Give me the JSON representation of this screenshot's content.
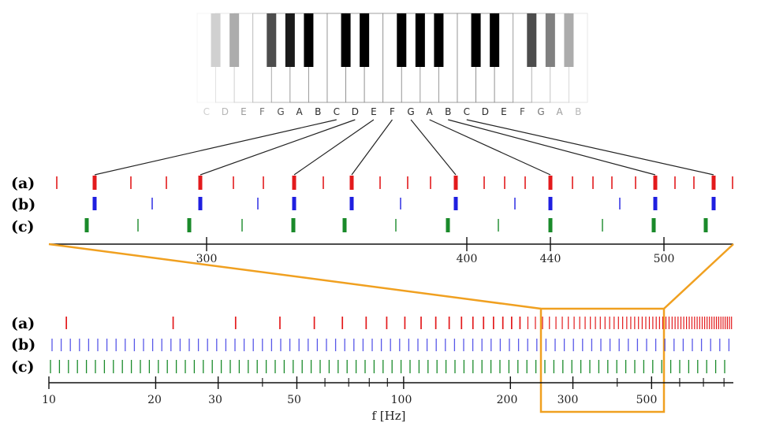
{
  "keyboard": {
    "note_labels": [
      "C",
      "D",
      "E",
      "F",
      "G",
      "A",
      "B",
      "C",
      "D",
      "E",
      "F",
      "G",
      "A",
      "B",
      "C",
      "D",
      "E",
      "F",
      "G",
      "A",
      "B"
    ]
  },
  "rows": [
    {
      "label": "(a)",
      "color": "#e31a1c"
    },
    {
      "label": "(b)",
      "color": "#1f1fe0"
    },
    {
      "label": "(c)",
      "color": "#1a8a2a"
    }
  ],
  "colors": {
    "zoom_box": "#f0a020",
    "axis": "#111111",
    "lines": "#222222"
  },
  "zoom_axis": {
    "ticks": [
      "300",
      "400",
      "440",
      "500"
    ]
  },
  "full_axis": {
    "ticks": [
      "10",
      "20",
      "30",
      "50",
      "100",
      "200",
      "300",
      "500"
    ],
    "title": "f [Hz]"
  }
}
